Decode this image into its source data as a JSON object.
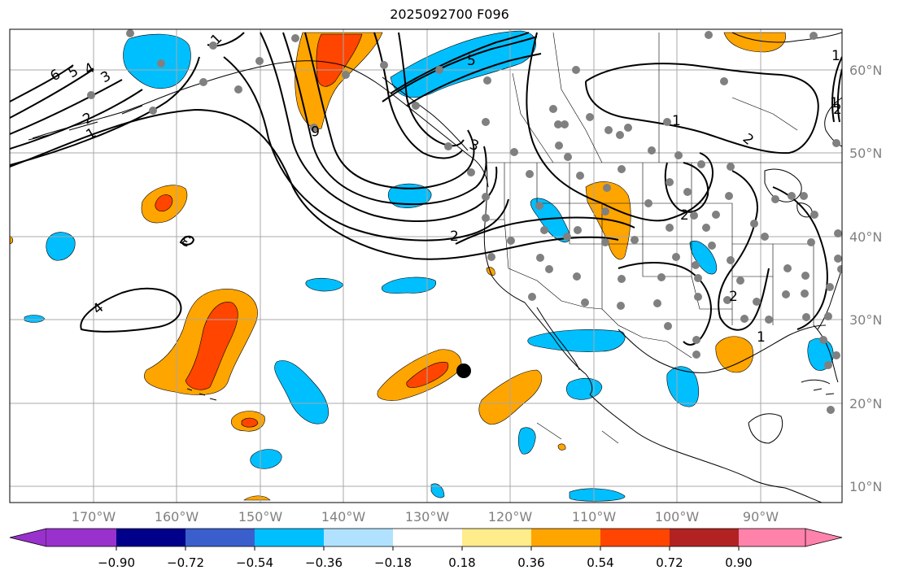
{
  "title": "2025092700 F096",
  "lat_labels": [
    "60°N",
    "50°N",
    "40°N",
    "30°N",
    "20°N",
    "10°N"
  ],
  "lon_labels": [
    "170°W",
    "160°W",
    "150°W",
    "140°W",
    "130°W",
    "120°W",
    "110°W",
    "100°W",
    "90°W"
  ],
  "colorbar": {
    "labels": [
      "−0.90",
      "−0.72",
      "−0.54",
      "−0.36",
      "−0.18",
      "0.18",
      "0.36",
      "0.54",
      "0.72",
      "0.90"
    ],
    "colors": [
      "#9932cc",
      "#00008b",
      "#3a5fcd",
      "#00bfff",
      "#b0e2ff",
      "#ffffff",
      "#ffec8b",
      "#ffa500",
      "#ff4500",
      "#b22222",
      "#ff82ab"
    ]
  },
  "contour_labels": [
    "6",
    "5",
    "4",
    "3",
    "2",
    "1",
    "1",
    "2",
    "6",
    "5",
    "4",
    "3",
    "2",
    "1",
    "1",
    "2",
    "2",
    "1",
    "1",
    "2",
    "3"
  ],
  "colors": {
    "grid": "#a8a8a8",
    "station": "#808080",
    "contour": "#000000"
  }
}
